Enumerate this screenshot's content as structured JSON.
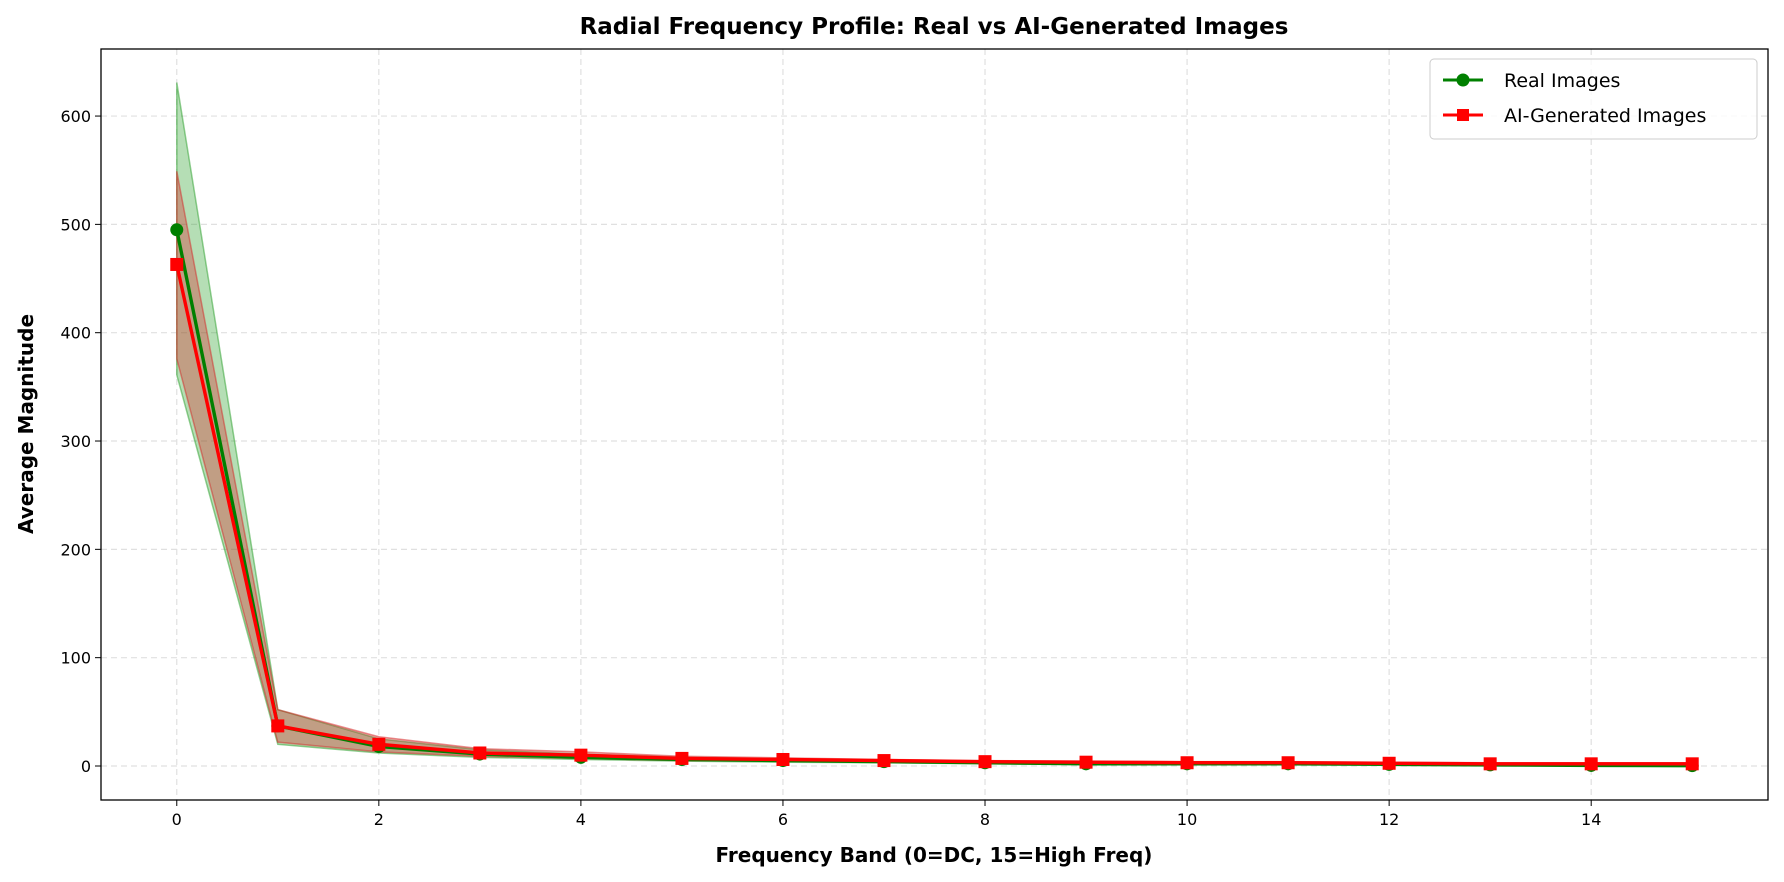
{
  "chart_data": {
    "type": "line",
    "title": "Radial Frequency Profile: Real vs AI-Generated Images",
    "xlabel": "Frequency Band (0=DC, 15=High Freq)",
    "ylabel": "Average Magnitude",
    "xlim": [
      -0.75,
      15.75
    ],
    "ylim": [
      -31.4,
      661.9
    ],
    "xticks": [
      0,
      2,
      4,
      6,
      8,
      10,
      12,
      14
    ],
    "yticks": [
      0,
      100,
      200,
      300,
      400,
      500,
      600
    ],
    "grid": true,
    "legend_position": "top-right",
    "x": [
      0,
      1,
      2,
      3,
      4,
      5,
      6,
      7,
      8,
      9,
      10,
      11,
      12,
      13,
      14,
      15
    ],
    "series": [
      {
        "name": "Real Images",
        "color": "#008000",
        "band_color": "#2ca02c",
        "marker": "circle",
        "values": [
          495,
          37,
          18,
          11,
          8,
          6,
          5,
          4,
          3,
          2,
          2,
          2,
          1.5,
          1,
          0.5,
          0.3
        ],
        "lower": [
          361,
          20,
          12,
          8,
          6,
          4.5,
          3.5,
          3,
          2,
          1.5,
          1.5,
          1.5,
          1,
          0.5,
          0,
          0
        ],
        "upper": [
          631,
          52,
          25,
          15,
          11,
          8,
          6.5,
          5,
          4,
          3,
          3,
          2.5,
          2,
          1.5,
          1,
          0.8
        ]
      },
      {
        "name": "AI-Generated Images",
        "color": "#ff0000",
        "band_color": "#d62728",
        "marker": "square",
        "values": [
          463,
          37,
          20,
          12,
          10,
          7,
          6,
          5,
          4,
          3.5,
          3,
          3,
          2.5,
          2,
          2,
          2
        ],
        "lower": [
          376,
          22,
          13,
          9,
          7,
          5,
          4.5,
          3.5,
          3,
          2.5,
          2,
          2,
          1.5,
          1.2,
          1.2,
          1.2
        ],
        "upper": [
          549,
          52,
          27,
          16,
          13,
          9,
          7.5,
          6,
          5,
          4.5,
          4,
          4,
          3.5,
          3,
          3,
          3
        ]
      }
    ]
  }
}
